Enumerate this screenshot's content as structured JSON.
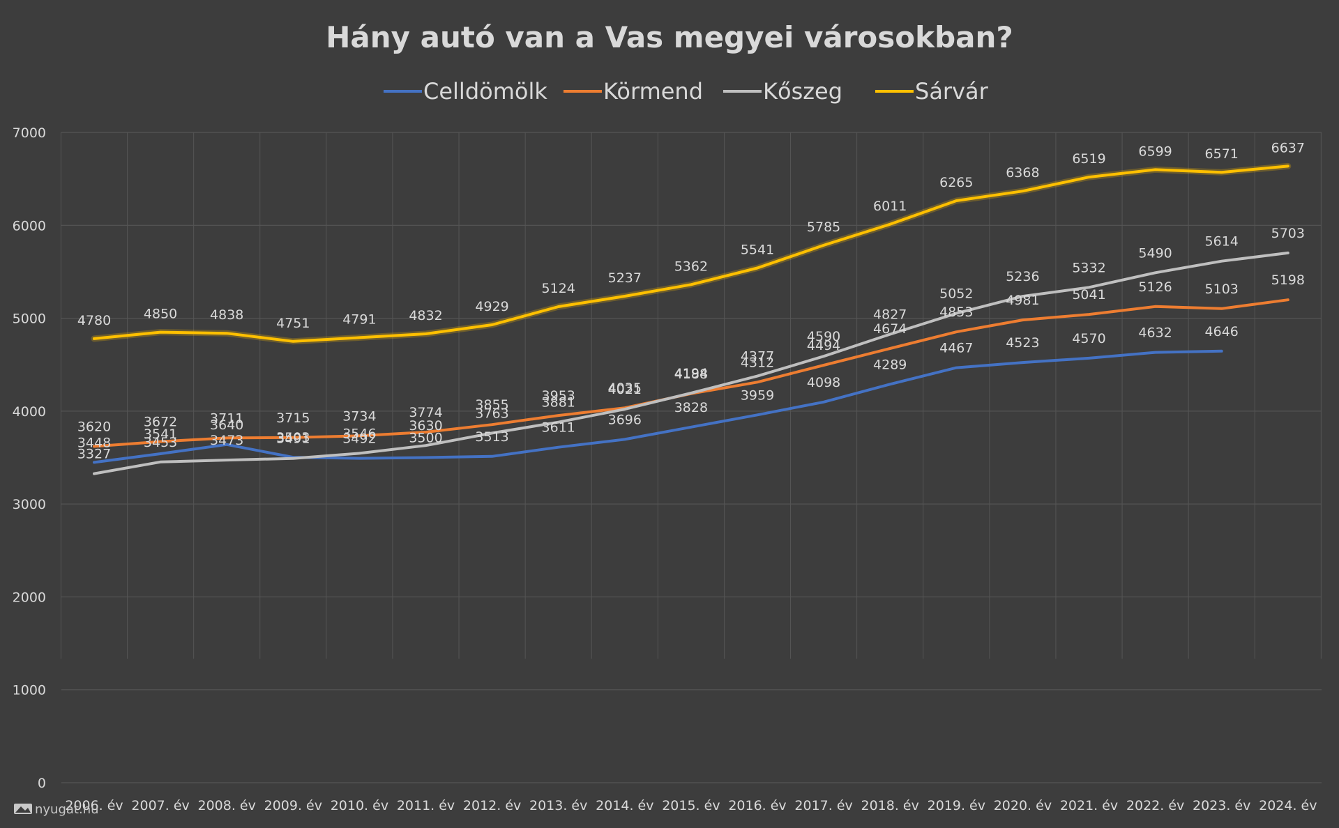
{
  "chart_data": {
    "type": "line",
    "title": "Hány autó van a Vas megyei városokban?",
    "xlabel": "",
    "ylabel": "",
    "ylim": [
      0,
      7000
    ],
    "yticks": [
      0,
      1000,
      2000,
      3000,
      4000,
      5000,
      6000,
      7000
    ],
    "grid": true,
    "legend_position": "top",
    "categories": [
      "2006. év",
      "2007. év",
      "2008. év",
      "2009. év",
      "2010. év",
      "2011. év",
      "2012. év",
      "2013. év",
      "2014. év",
      "2015. év",
      "2016. év",
      "2017. év",
      "2018. év",
      "2019. év",
      "2020. év",
      "2021. év",
      "2022. év",
      "2023. év",
      "2024. év"
    ],
    "series": [
      {
        "name": "Celldömölk",
        "color": "#4472c4",
        "values": [
          3448,
          3541,
          3640,
          3503,
          3492,
          3500,
          3513,
          3611,
          3696,
          3828,
          3959,
          4098,
          4289,
          4467,
          4523,
          4570,
          4632,
          4646,
          null
        ]
      },
      {
        "name": "Körmend",
        "color": "#ed7d31",
        "values": [
          3620,
          3672,
          3711,
          3715,
          3734,
          3774,
          3855,
          3953,
          4035,
          4188,
          4312,
          4494,
          4674,
          4853,
          4981,
          5041,
          5126,
          5103,
          5198
        ]
      },
      {
        "name": "Kőszeg",
        "color": "#bfbfbf",
        "values": [
          3327,
          3453,
          3473,
          3491,
          3546,
          3630,
          3763,
          3881,
          4021,
          4194,
          4377,
          4590,
          4827,
          5052,
          5236,
          5332,
          5490,
          5614,
          5703
        ]
      },
      {
        "name": "Sárvár",
        "color": "#ffc000",
        "values": [
          4780,
          4850,
          4838,
          4751,
          4791,
          4832,
          4929,
          5124,
          5237,
          5362,
          5541,
          5785,
          6011,
          6265,
          6368,
          6519,
          6599,
          6571,
          6637
        ]
      }
    ]
  },
  "watermark": "nyugat.hu"
}
